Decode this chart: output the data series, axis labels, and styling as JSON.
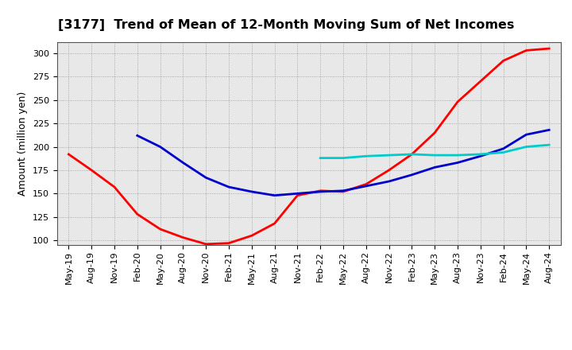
{
  "title": "[3177]  Trend of Mean of 12-Month Moving Sum of Net Incomes",
  "ylabel": "Amount (million yen)",
  "ylim": [
    95,
    312
  ],
  "yticks": [
    100,
    125,
    150,
    175,
    200,
    225,
    250,
    275,
    300
  ],
  "background_color": "#e8e8e8",
  "grid_color": "#999999",
  "series": {
    "3 Years": {
      "color": "#ff0000",
      "data": [
        [
          "May-19",
          192
        ],
        [
          "Aug-19",
          175
        ],
        [
          "Nov-19",
          157
        ],
        [
          "Feb-20",
          128
        ],
        [
          "May-20",
          112
        ],
        [
          "Aug-20",
          103
        ],
        [
          "Nov-20",
          96
        ],
        [
          "Feb-21",
          97
        ],
        [
          "May-21",
          105
        ],
        [
          "Aug-21",
          118
        ],
        [
          "Nov-21",
          148
        ],
        [
          "Feb-22",
          153
        ],
        [
          "May-22",
          152
        ],
        [
          "Aug-22",
          160
        ],
        [
          "Nov-22",
          175
        ],
        [
          "Feb-23",
          192
        ],
        [
          "May-23",
          215
        ],
        [
          "Aug-23",
          248
        ],
        [
          "Nov-23",
          270
        ],
        [
          "Feb-24",
          292
        ],
        [
          "May-24",
          303
        ],
        [
          "Aug-24",
          305
        ]
      ]
    },
    "5 Years": {
      "color": "#0000cc",
      "data": [
        [
          "May-19",
          null
        ],
        [
          "Aug-19",
          null
        ],
        [
          "Nov-19",
          null
        ],
        [
          "Feb-20",
          212
        ],
        [
          "May-20",
          200
        ],
        [
          "Aug-20",
          183
        ],
        [
          "Nov-20",
          167
        ],
        [
          "Feb-21",
          157
        ],
        [
          "May-21",
          152
        ],
        [
          "Aug-21",
          148
        ],
        [
          "Nov-21",
          150
        ],
        [
          "Feb-22",
          152
        ],
        [
          "May-22",
          153
        ],
        [
          "Aug-22",
          158
        ],
        [
          "Nov-22",
          163
        ],
        [
          "Feb-23",
          170
        ],
        [
          "May-23",
          178
        ],
        [
          "Aug-23",
          183
        ],
        [
          "Nov-23",
          190
        ],
        [
          "Feb-24",
          198
        ],
        [
          "May-24",
          213
        ],
        [
          "Aug-24",
          218
        ]
      ]
    },
    "7 Years": {
      "color": "#00cccc",
      "data": [
        [
          "May-19",
          null
        ],
        [
          "Aug-19",
          null
        ],
        [
          "Nov-19",
          null
        ],
        [
          "Feb-20",
          null
        ],
        [
          "May-20",
          null
        ],
        [
          "Aug-20",
          null
        ],
        [
          "Nov-20",
          null
        ],
        [
          "Feb-21",
          null
        ],
        [
          "May-21",
          null
        ],
        [
          "Aug-21",
          null
        ],
        [
          "Nov-21",
          null
        ],
        [
          "Feb-22",
          188
        ],
        [
          "May-22",
          188
        ],
        [
          "Aug-22",
          190
        ],
        [
          "Nov-22",
          191
        ],
        [
          "Feb-23",
          192
        ],
        [
          "May-23",
          191
        ],
        [
          "Aug-23",
          191
        ],
        [
          "Nov-23",
          192
        ],
        [
          "Feb-24",
          194
        ],
        [
          "May-24",
          200
        ],
        [
          "Aug-24",
          202
        ]
      ]
    },
    "10 Years": {
      "color": "#007700",
      "data": [
        [
          "May-19",
          null
        ],
        [
          "Aug-19",
          null
        ],
        [
          "Nov-19",
          null
        ],
        [
          "Feb-20",
          null
        ],
        [
          "May-20",
          null
        ],
        [
          "Aug-20",
          null
        ],
        [
          "Nov-20",
          null
        ],
        [
          "Feb-21",
          null
        ],
        [
          "May-21",
          null
        ],
        [
          "Aug-21",
          null
        ],
        [
          "Nov-21",
          null
        ],
        [
          "Feb-22",
          null
        ],
        [
          "May-22",
          null
        ],
        [
          "Aug-22",
          null
        ],
        [
          "Nov-22",
          null
        ],
        [
          "Feb-23",
          null
        ],
        [
          "May-23",
          null
        ],
        [
          "Aug-23",
          null
        ],
        [
          "Nov-23",
          null
        ],
        [
          "Feb-24",
          null
        ],
        [
          "May-24",
          null
        ],
        [
          "Aug-24",
          null
        ]
      ]
    }
  },
  "xtick_labels": [
    "May-19",
    "Aug-19",
    "Nov-19",
    "Feb-20",
    "May-20",
    "Aug-20",
    "Nov-20",
    "Feb-21",
    "May-21",
    "Aug-21",
    "Nov-21",
    "Feb-22",
    "May-22",
    "Aug-22",
    "Nov-22",
    "Feb-23",
    "May-23",
    "Aug-23",
    "Nov-23",
    "Feb-24",
    "May-24",
    "Aug-24"
  ],
  "title_fontsize": 11.5,
  "axis_label_fontsize": 9,
  "tick_fontsize": 8,
  "legend_fontsize": 9,
  "line_width": 2.0
}
